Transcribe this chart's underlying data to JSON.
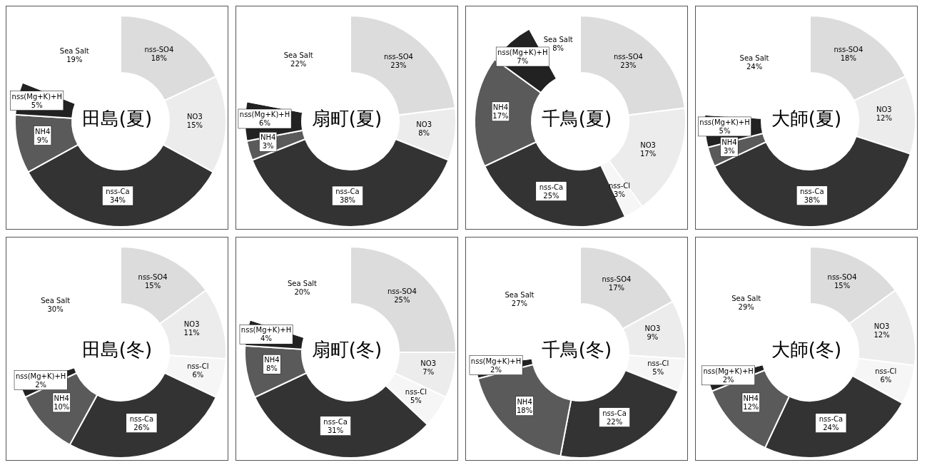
{
  "chart_data": [
    {
      "type": "donut",
      "title": "田島(夏)",
      "categories": [
        "nss-SO4",
        "NO3",
        "nss-Ca",
        "NH4",
        "nss(Mg+K)+H",
        "Sea Salt"
      ],
      "values": [
        18,
        15,
        34,
        9,
        5,
        19
      ],
      "value_labels": [
        "18%",
        "15%",
        "34%",
        "9%",
        "5%",
        "19%"
      ],
      "colors": [
        "#dcdcdc",
        "#ececec",
        "#333333",
        "#5a5a5a",
        "#222222",
        "#ffffff"
      ]
    },
    {
      "type": "donut",
      "title": "扇町(夏)",
      "categories": [
        "nss-SO4",
        "NO3",
        "nss-Ca",
        "NH4",
        "nss(Mg+K)+H",
        "Sea Salt"
      ],
      "values": [
        23,
        8,
        38,
        3,
        6,
        22
      ],
      "value_labels": [
        "23%",
        "8%",
        "38%",
        "3%",
        "6%",
        "22%"
      ],
      "colors": [
        "#dcdcdc",
        "#ececec",
        "#333333",
        "#5a5a5a",
        "#222222",
        "#ffffff"
      ]
    },
    {
      "type": "donut",
      "title": "千鳥(夏)",
      "categories": [
        "nss-SO4",
        "NO3",
        "nss-Cl",
        "nss-Ca",
        "NH4",
        "nss(Mg+K)+H",
        "Sea Salt"
      ],
      "values": [
        23,
        17,
        3,
        25,
        17,
        7,
        8
      ],
      "value_labels": [
        "23%",
        "17%",
        "3%",
        "25%",
        "17%",
        "7%",
        "8%"
      ],
      "colors": [
        "#dcdcdc",
        "#ececec",
        "#f6f6f6",
        "#333333",
        "#5a5a5a",
        "#222222",
        "#ffffff"
      ]
    },
    {
      "type": "donut",
      "title": "大師(夏)",
      "categories": [
        "nss-SO4",
        "NO3",
        "nss-Ca",
        "NH4",
        "nss(Mg+K)+H",
        "Sea Salt"
      ],
      "values": [
        18,
        12,
        38,
        3,
        5,
        24
      ],
      "value_labels": [
        "18%",
        "12%",
        "38%",
        "3%",
        "5%",
        "24%"
      ],
      "colors": [
        "#dcdcdc",
        "#ececec",
        "#333333",
        "#5a5a5a",
        "#222222",
        "#ffffff"
      ]
    },
    {
      "type": "donut",
      "title": "田島(冬)",
      "categories": [
        "nss-SO4",
        "NO3",
        "nss-Cl",
        "nss-Ca",
        "NH4",
        "nss(Mg+K)+H",
        "Sea Salt"
      ],
      "values": [
        15,
        11,
        6,
        26,
        10,
        2,
        30
      ],
      "value_labels": [
        "15%",
        "11%",
        "6%",
        "26%",
        "10%",
        "2%",
        "30%"
      ],
      "colors": [
        "#dcdcdc",
        "#ececec",
        "#f6f6f6",
        "#333333",
        "#5a5a5a",
        "#222222",
        "#ffffff"
      ]
    },
    {
      "type": "donut",
      "title": "扇町(冬)",
      "categories": [
        "nss-SO4",
        "NO3",
        "nss-Cl",
        "nss-Ca",
        "NH4",
        "nss(Mg+K)+H",
        "Sea Salt"
      ],
      "values": [
        25,
        7,
        5,
        31,
        8,
        4,
        20
      ],
      "value_labels": [
        "25%",
        "7%",
        "5%",
        "31%",
        "8%",
        "4%",
        "20%"
      ],
      "colors": [
        "#dcdcdc",
        "#ececec",
        "#f6f6f6",
        "#333333",
        "#5a5a5a",
        "#222222",
        "#ffffff"
      ]
    },
    {
      "type": "donut",
      "title": "千鳥(冬)",
      "categories": [
        "nss-SO4",
        "NO3",
        "nss-Cl",
        "nss-Ca",
        "NH4",
        "nss(Mg+K)+H",
        "Sea Salt"
      ],
      "values": [
        17,
        9,
        5,
        22,
        18,
        2,
        27
      ],
      "value_labels": [
        "17%",
        "9%",
        "5%",
        "22%",
        "18%",
        "2%",
        "27%"
      ],
      "colors": [
        "#dcdcdc",
        "#ececec",
        "#f6f6f6",
        "#333333",
        "#5a5a5a",
        "#222222",
        "#ffffff"
      ]
    },
    {
      "type": "donut",
      "title": "大師(冬)",
      "categories": [
        "nss-SO4",
        "NO3",
        "nss-Cl",
        "nss-Ca",
        "NH4",
        "nss(Mg+K)+H",
        "Sea Salt"
      ],
      "values": [
        15,
        12,
        6,
        24,
        12,
        2,
        29
      ],
      "value_labels": [
        "15%",
        "12%",
        "6%",
        "24%",
        "12%",
        "2%",
        "29%"
      ],
      "colors": [
        "#dcdcdc",
        "#ececec",
        "#f6f6f6",
        "#333333",
        "#5a5a5a",
        "#222222",
        "#ffffff"
      ]
    }
  ]
}
